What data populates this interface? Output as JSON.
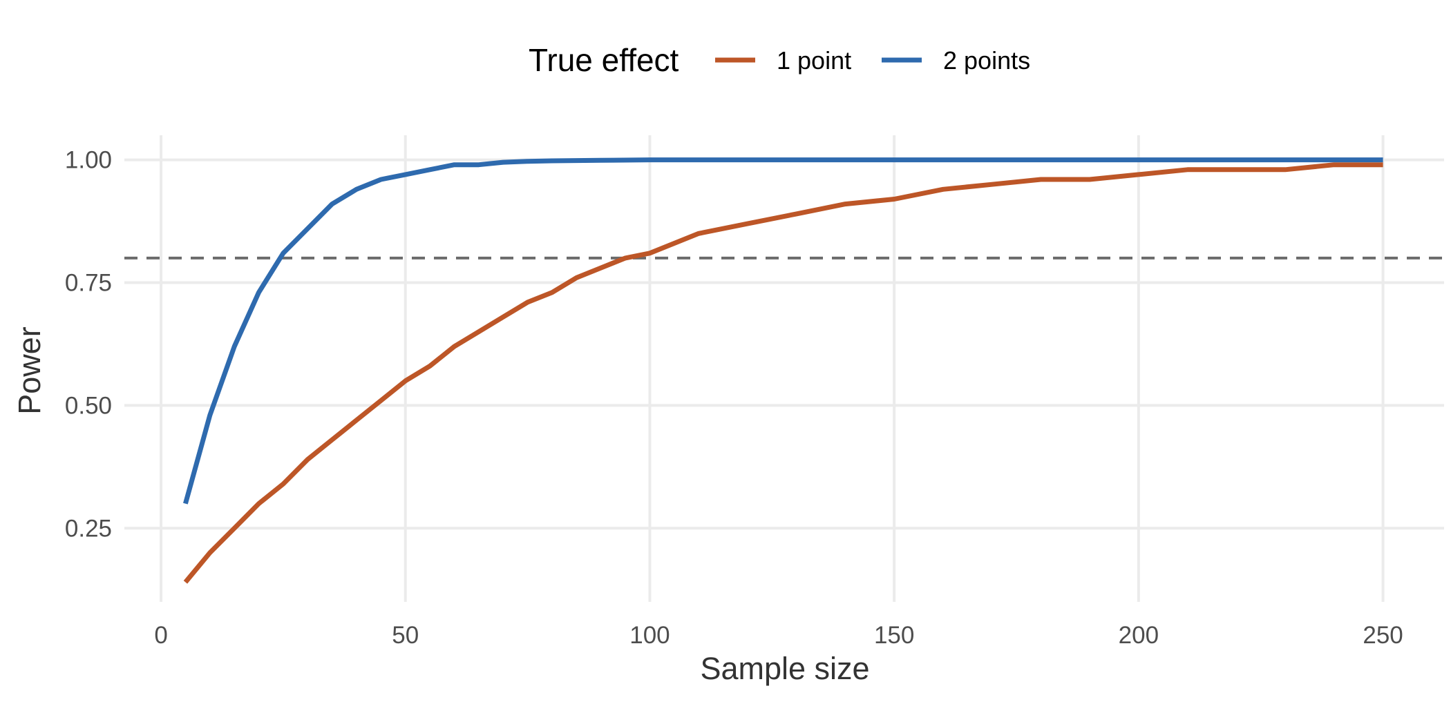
{
  "chart_data": {
    "type": "line",
    "title": "",
    "xlabel": "Sample size",
    "ylabel": "Power",
    "xlim": [
      -7.5,
      262.5
    ],
    "ylim": [
      0.1,
      1.05
    ],
    "x_ticks": [
      0,
      50,
      100,
      150,
      200,
      250
    ],
    "x_tick_labels": [
      "0",
      "50",
      "100",
      "150",
      "200",
      "250"
    ],
    "y_ticks": [
      0.25,
      0.5,
      0.75,
      1.0
    ],
    "y_tick_labels": [
      "0.25",
      "0.50",
      "0.75",
      "1.00"
    ],
    "grid": true,
    "reference_line": {
      "y": 0.8,
      "style": "dashed",
      "color": "#6b6b6b"
    },
    "legend": {
      "title": "True effect",
      "position": "top"
    },
    "series": [
      {
        "name": "1 point",
        "color": "#bd5627",
        "x": [
          5,
          10,
          15,
          20,
          25,
          30,
          35,
          40,
          45,
          50,
          55,
          60,
          65,
          70,
          75,
          80,
          85,
          90,
          95,
          100,
          110,
          120,
          130,
          140,
          150,
          160,
          170,
          180,
          190,
          200,
          210,
          220,
          230,
          240,
          250
        ],
        "y": [
          0.14,
          0.2,
          0.25,
          0.3,
          0.34,
          0.39,
          0.43,
          0.47,
          0.51,
          0.55,
          0.58,
          0.62,
          0.65,
          0.68,
          0.71,
          0.73,
          0.76,
          0.78,
          0.8,
          0.81,
          0.85,
          0.87,
          0.89,
          0.91,
          0.92,
          0.94,
          0.95,
          0.96,
          0.96,
          0.97,
          0.98,
          0.98,
          0.98,
          0.99,
          0.99
        ]
      },
      {
        "name": "2 points",
        "color": "#2e6aae",
        "x": [
          5,
          10,
          15,
          20,
          25,
          30,
          35,
          40,
          45,
          50,
          55,
          60,
          65,
          70,
          75,
          80,
          90,
          100,
          150,
          200,
          250
        ],
        "y": [
          0.3,
          0.48,
          0.62,
          0.73,
          0.81,
          0.86,
          0.91,
          0.94,
          0.96,
          0.97,
          0.98,
          0.99,
          0.99,
          0.995,
          0.997,
          0.998,
          0.999,
          1.0,
          1.0,
          1.0,
          1.0
        ]
      }
    ]
  }
}
